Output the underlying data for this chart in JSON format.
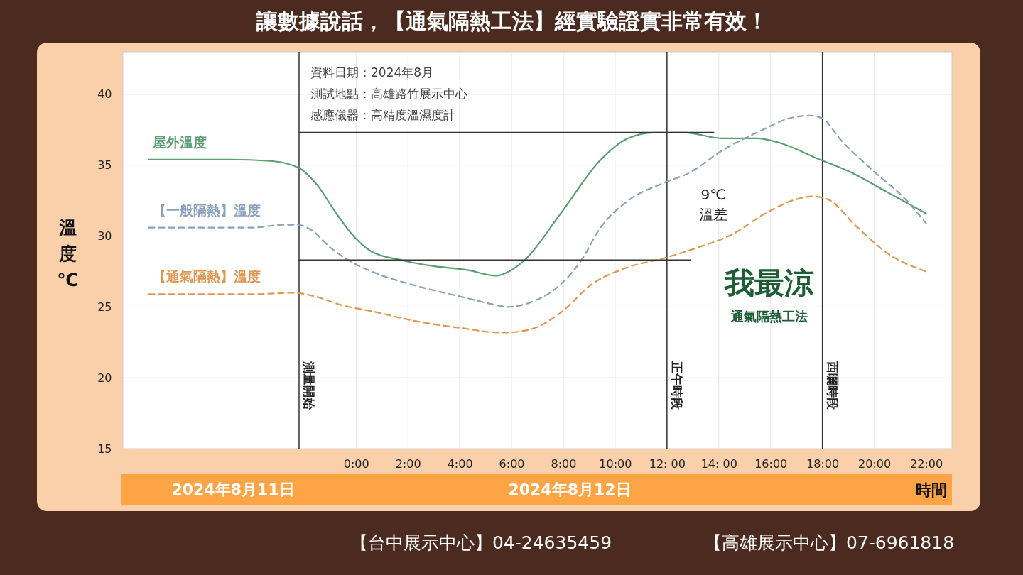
{
  "chart_data": {
    "type": "line",
    "title": "讓數據說話，【通氣隔熱工法】經實驗證實非常有效！",
    "xlabel": "時間",
    "ylabel": "溫度℃",
    "xlim": [
      -9,
      23
    ],
    "ylim": [
      15,
      43
    ],
    "xticks": [
      {
        "value": 0,
        "label": "0:00"
      },
      {
        "value": 2,
        "label": "2:00"
      },
      {
        "value": 4,
        "label": "4:00"
      },
      {
        "value": 6,
        "label": "6:00"
      },
      {
        "value": 8,
        "label": "8:00"
      },
      {
        "value": 10,
        "label": "10:00"
      },
      {
        "value": 12,
        "label": "12: 00"
      },
      {
        "value": 14,
        "label": "14: 00"
      },
      {
        "value": 16,
        "label": "16:00"
      },
      {
        "value": 18,
        "label": "18:00"
      },
      {
        "value": 20,
        "label": "20:00"
      },
      {
        "value": 22,
        "label": "22:00"
      }
    ],
    "yticks": [
      15,
      20,
      25,
      30,
      35,
      40
    ],
    "grid": true,
    "series": [
      {
        "name": "屋外溫度",
        "color": "#5a9e72",
        "line_style": "solid",
        "x": [
          -8.0,
          -4.9,
          -3.3,
          -2.2,
          -1.5,
          -0.8,
          -0.1,
          0.6,
          1.75,
          2.9,
          4.3,
          5.4,
          5.9,
          6.5,
          7.9,
          9.4,
          10.5,
          11.5,
          12.7,
          14.1,
          15.5,
          16.3,
          17.9,
          19.1,
          20.5,
          22.0
        ],
        "values": [
          35.4,
          35.4,
          35.3,
          34.8,
          33.6,
          31.7,
          30.0,
          28.9,
          28.3,
          27.9,
          27.6,
          27.2,
          27.5,
          28.3,
          31.6,
          35.3,
          36.9,
          37.3,
          37.3,
          36.9,
          36.9,
          36.6,
          35.4,
          34.5,
          33.1,
          31.6
        ]
      },
      {
        "name": "【一般隔熱】溫度",
        "color": "#8ba2bf",
        "line_style": "dashed",
        "x": [
          -8.0,
          -4.0,
          -2.8,
          -2.3,
          -1.7,
          -1.0,
          -0.3,
          0.6,
          2.3,
          4.1,
          5.5,
          5.8,
          6.7,
          7.9,
          8.7,
          9.4,
          10.5,
          11.8,
          12.9,
          14.1,
          15.7,
          16.7,
          17.5,
          18.0,
          18.7,
          19.9,
          21.2,
          22.0
        ],
        "values": [
          30.6,
          30.6,
          30.8,
          30.8,
          30.4,
          29.2,
          28.3,
          27.5,
          26.5,
          25.7,
          25.1,
          25.0,
          25.3,
          26.6,
          28.3,
          30.5,
          32.5,
          33.7,
          34.5,
          36.0,
          37.5,
          38.3,
          38.5,
          38.3,
          36.8,
          34.7,
          32.6,
          30.9
        ]
      },
      {
        "name": "【通氣隔熱】溫度",
        "color": "#e0964f",
        "line_style": "dashed",
        "x": [
          -8.0,
          -4.0,
          -2.4,
          -1.7,
          -0.5,
          0.6,
          2.3,
          4.1,
          5.5,
          5.8,
          6.7,
          7.9,
          9.1,
          10.5,
          11.8,
          13.2,
          14.5,
          15.8,
          17.0,
          17.6,
          18.2,
          19.3,
          20.5,
          22.0
        ],
        "values": [
          25.9,
          25.9,
          26.0,
          25.8,
          25.1,
          24.7,
          24.0,
          23.5,
          23.2,
          23.2,
          23.4,
          24.6,
          26.6,
          27.8,
          28.4,
          29.2,
          30.1,
          31.6,
          32.6,
          32.8,
          32.6,
          30.7,
          28.8,
          27.5
        ]
      },
      {
        "color": "#333333",
        "line_style": "solid",
        "x": [
          -2.2,
          13.8
        ],
        "values": [
          37.3,
          37.3
        ]
      },
      {
        "color": "#333333",
        "line_style": "solid",
        "x": [
          -2.2,
          12.9
        ],
        "values": [
          28.3,
          28.3
        ]
      }
    ],
    "ref_lines": [
      {
        "axis": "x",
        "value": -2.2,
        "label": "測量開始",
        "color": "#333333"
      },
      {
        "axis": "x",
        "value": 12,
        "label": "正午時段",
        "color": "#333333"
      },
      {
        "axis": "x",
        "value": 18,
        "label": "西曬時段",
        "color": "#333333"
      }
    ],
    "annotations": [
      "資料日期：2024年8月",
      "測試地點：高雄路竹展示中心",
      "感應儀器：高精度溫濕度計",
      "9℃\n溫差",
      "我最涼",
      "通氣隔熱工法",
      "2024年8月11日",
      "2024年8月12日",
      "【台中展示中心】04-24635459",
      "【高雄展示中心】07-6961818"
    ]
  }
}
